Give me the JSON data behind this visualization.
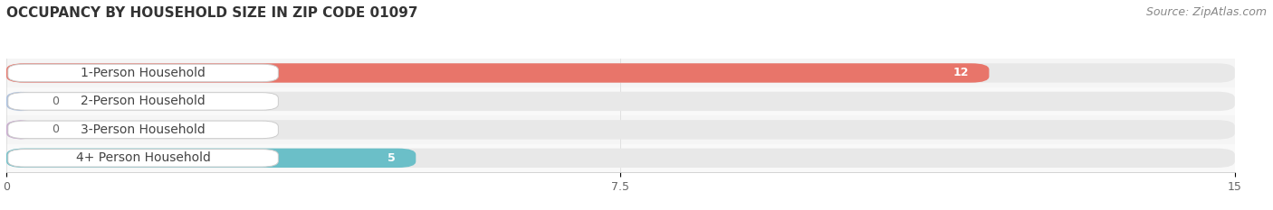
{
  "title": "OCCUPANCY BY HOUSEHOLD SIZE IN ZIP CODE 01097",
  "source": "Source: ZipAtlas.com",
  "categories": [
    "1-Person Household",
    "2-Person Household",
    "3-Person Household",
    "4+ Person Household"
  ],
  "values": [
    12,
    0,
    0,
    5
  ],
  "bar_colors": [
    "#E8756A",
    "#A8BFE0",
    "#C9A8D0",
    "#6BBFC8"
  ],
  "xlim": [
    0,
    15
  ],
  "xticks": [
    0,
    7.5,
    15
  ],
  "title_fontsize": 11,
  "source_fontsize": 9,
  "label_fontsize": 10,
  "value_fontsize": 9,
  "background_color": "#FFFFFF",
  "bar_height": 0.68,
  "row_bg_alt": "#F5F5F5",
  "row_bg_main": "#EBEBEB",
  "pill_bg": "#E8E8E8"
}
